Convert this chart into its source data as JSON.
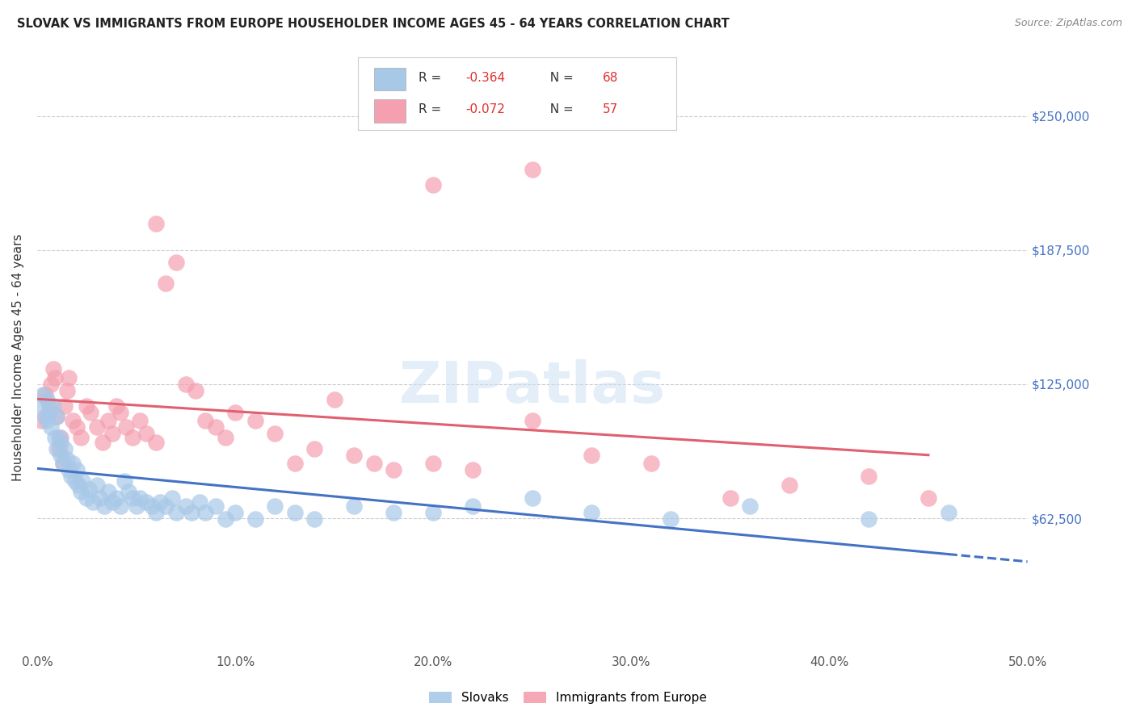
{
  "title": "SLOVAK VS IMMIGRANTS FROM EUROPE HOUSEHOLDER INCOME AGES 45 - 64 YEARS CORRELATION CHART",
  "source": "Source: ZipAtlas.com",
  "ylabel": "Householder Income Ages 45 - 64 years",
  "xlabel_ticks": [
    "0.0%",
    "10.0%",
    "20.0%",
    "30.0%",
    "40.0%",
    "50.0%"
  ],
  "xlabel_vals": [
    0.0,
    0.1,
    0.2,
    0.3,
    0.4,
    0.5
  ],
  "ytick_labels": [
    "$62,500",
    "$125,000",
    "$187,500",
    "$250,000"
  ],
  "ytick_vals": [
    62500,
    125000,
    187500,
    250000
  ],
  "xlim": [
    0.0,
    0.5
  ],
  "ylim": [
    0,
    275000
  ],
  "legend_labels": [
    "Slovaks",
    "Immigrants from Europe"
  ],
  "blue_color": "#a8c8e8",
  "pink_color": "#f4a0b0",
  "blue_line_color": "#4472c4",
  "pink_line_color": "#e06070",
  "blue_r_color": "#e05050",
  "pink_r_color": "#e05050",
  "r_blue": "-0.364",
  "n_blue": "68",
  "r_pink": "-0.072",
  "n_pink": "57",
  "slovaks_x": [
    0.002,
    0.003,
    0.004,
    0.005,
    0.005,
    0.006,
    0.007,
    0.008,
    0.009,
    0.01,
    0.01,
    0.011,
    0.012,
    0.012,
    0.013,
    0.014,
    0.015,
    0.016,
    0.017,
    0.018,
    0.019,
    0.02,
    0.021,
    0.022,
    0.023,
    0.025,
    0.026,
    0.028,
    0.03,
    0.032,
    0.034,
    0.036,
    0.038,
    0.04,
    0.042,
    0.044,
    0.046,
    0.048,
    0.05,
    0.052,
    0.055,
    0.058,
    0.06,
    0.062,
    0.065,
    0.068,
    0.07,
    0.075,
    0.078,
    0.082,
    0.085,
    0.09,
    0.095,
    0.1,
    0.11,
    0.12,
    0.13,
    0.14,
    0.16,
    0.18,
    0.2,
    0.22,
    0.25,
    0.28,
    0.32,
    0.36,
    0.42,
    0.46
  ],
  "slovaks_y": [
    115000,
    120000,
    110000,
    108000,
    118000,
    112000,
    105000,
    115000,
    100000,
    110000,
    95000,
    100000,
    92000,
    98000,
    88000,
    95000,
    90000,
    85000,
    82000,
    88000,
    80000,
    85000,
    78000,
    75000,
    80000,
    72000,
    76000,
    70000,
    78000,
    72000,
    68000,
    75000,
    70000,
    72000,
    68000,
    80000,
    75000,
    72000,
    68000,
    72000,
    70000,
    68000,
    65000,
    70000,
    68000,
    72000,
    65000,
    68000,
    65000,
    70000,
    65000,
    68000,
    62000,
    65000,
    62000,
    68000,
    65000,
    62000,
    68000,
    65000,
    65000,
    68000,
    72000,
    65000,
    62000,
    68000,
    62000,
    65000
  ],
  "immigrants_x": [
    0.002,
    0.004,
    0.006,
    0.007,
    0.008,
    0.009,
    0.01,
    0.011,
    0.012,
    0.013,
    0.014,
    0.015,
    0.016,
    0.018,
    0.02,
    0.022,
    0.025,
    0.027,
    0.03,
    0.033,
    0.036,
    0.038,
    0.04,
    0.042,
    0.045,
    0.048,
    0.052,
    0.055,
    0.06,
    0.065,
    0.07,
    0.075,
    0.08,
    0.085,
    0.09,
    0.095,
    0.1,
    0.11,
    0.12,
    0.13,
    0.14,
    0.15,
    0.16,
    0.17,
    0.18,
    0.2,
    0.22,
    0.25,
    0.28,
    0.31,
    0.35,
    0.38,
    0.42,
    0.45,
    0.2,
    0.25,
    0.06
  ],
  "immigrants_y": [
    108000,
    120000,
    115000,
    125000,
    132000,
    128000,
    110000,
    95000,
    100000,
    88000,
    115000,
    122000,
    128000,
    108000,
    105000,
    100000,
    115000,
    112000,
    105000,
    98000,
    108000,
    102000,
    115000,
    112000,
    105000,
    100000,
    108000,
    102000,
    98000,
    172000,
    182000,
    125000,
    122000,
    108000,
    105000,
    100000,
    112000,
    108000,
    102000,
    88000,
    95000,
    118000,
    92000,
    88000,
    85000,
    88000,
    85000,
    108000,
    92000,
    88000,
    72000,
    78000,
    82000,
    72000,
    218000,
    225000,
    200000
  ]
}
